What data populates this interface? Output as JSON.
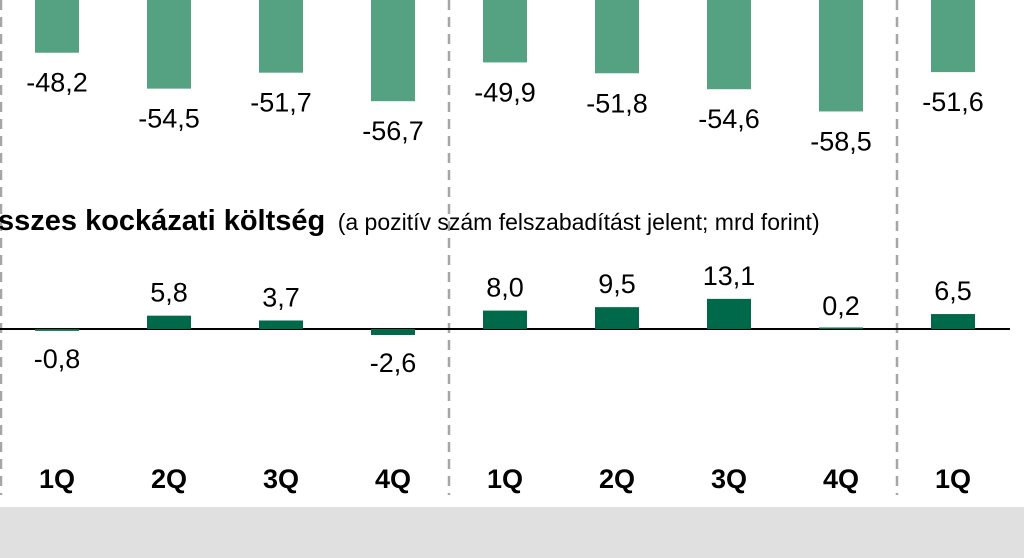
{
  "colors": {
    "top_bar": "#55a283",
    "bottom_bar": "#00694a",
    "divider": "#a6a6a6",
    "axis": "#000000",
    "footer": "#e0e0e0"
  },
  "chart_data": [
    {
      "type": "bar",
      "categories": [
        "1Q",
        "2Q",
        "3Q",
        "4Q",
        "1Q",
        "2Q",
        "3Q",
        "4Q",
        "1Q"
      ],
      "values": [
        -48.2,
        -54.5,
        -51.7,
        -56.7,
        -49.9,
        -51.8,
        -54.6,
        -58.5,
        -51.6
      ],
      "value_labels": [
        "-48,2",
        "-54,5",
        "-51,7",
        "-56,7",
        "-49,9",
        "-51,8",
        "-54,6",
        "-58,5",
        "-51,6"
      ],
      "title": ""
    },
    {
      "type": "bar",
      "title": "sszes kockázati költség",
      "subtitle": "(a pozitív szám felszabadítást jelent; mrd forint)",
      "categories": [
        "1Q",
        "2Q",
        "3Q",
        "4Q",
        "1Q",
        "2Q",
        "3Q",
        "4Q",
        "1Q"
      ],
      "values": [
        -0.8,
        5.8,
        3.7,
        -2.6,
        8.0,
        9.5,
        13.1,
        0.2,
        6.5
      ],
      "value_labels": [
        "-0,8",
        "5,8",
        "3,7",
        "-2,6",
        "8,0",
        "9,5",
        "13,1",
        "0,2",
        "6,5"
      ]
    }
  ]
}
